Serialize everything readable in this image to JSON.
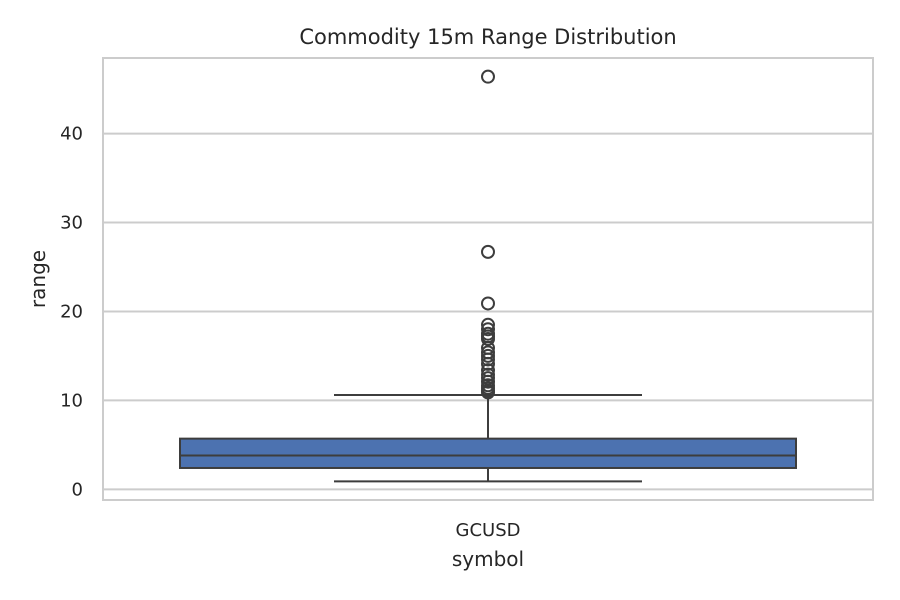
{
  "chart_data": {
    "type": "box",
    "title": "Commodity 15m Range Distribution",
    "xlabel": "symbol",
    "ylabel": "range",
    "categories": [
      "GCUSD"
    ],
    "ylim": [
      -1.2,
      48.5
    ],
    "yticks": [
      0,
      10,
      20,
      30,
      40
    ],
    "grid": true,
    "legend": "none",
    "boxes": [
      {
        "category": "GCUSD",
        "whisker_low": 0.9,
        "q1": 2.4,
        "median": 3.8,
        "q3": 5.7,
        "whisker_high": 10.6,
        "outliers": [
          46.4,
          26.7,
          20.9,
          18.5,
          18.0,
          17.5,
          17.2,
          16.9,
          15.9,
          15.4,
          15.0,
          14.6,
          14.1,
          13.4,
          12.9,
          12.5,
          12.1,
          11.7,
          11.4,
          11.1,
          10.9
        ]
      }
    ],
    "colors": {
      "box_fill": "#4c72b0",
      "line": "#3d3d3d",
      "grid": "#cccccc",
      "frame": "#cccccc"
    }
  }
}
